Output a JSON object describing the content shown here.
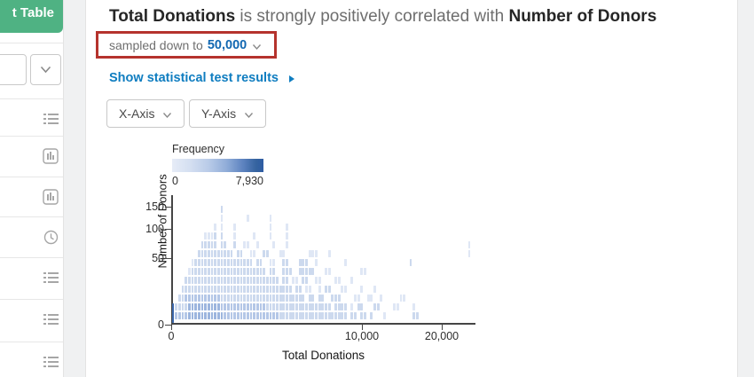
{
  "colors": {
    "accent_green": "#4fb283",
    "link_blue": "#0f7dc0",
    "value_blue": "#1268b2",
    "annotation_red": "#b5332d",
    "heat_scale": [
      "#dfe7f5",
      "#ccd9ee",
      "#b4c7e7",
      "#9cb5de",
      "#3a66ab"
    ],
    "legend_gradient_min": "#e6ecf7",
    "legend_gradient_max": "#2e5ca3"
  },
  "sidebar": {
    "pivot_button_label": "t Table",
    "rows": [
      {
        "icon": "list"
      },
      {
        "icon": "bar-chart"
      },
      {
        "icon": "bar-chart"
      },
      {
        "icon": "clock"
      },
      {
        "icon": "list"
      },
      {
        "icon": "list"
      },
      {
        "icon": "list"
      }
    ]
  },
  "header": {
    "title_subject": "Total Donations",
    "title_middle": " is strongly positively correlated with ",
    "title_object": "Number of Donors",
    "sample_prefix": "sampled down to",
    "sample_value": "50,000",
    "stats_link": "Show statistical test results"
  },
  "controls": {
    "x_axis_button": "X-Axis",
    "y_axis_button": "Y-Axis"
  },
  "chart_data": {
    "type": "heatmap",
    "title": "",
    "xlabel": "Total Donations",
    "ylabel": "Number of Donors",
    "x_scale": "sqrt",
    "y_scale": "sqrt",
    "x_range": [
      0,
      24000
    ],
    "y_range": [
      0,
      165
    ],
    "x_ticks": [
      "0",
      "10,000",
      "20,000"
    ],
    "x_tick_values": [
      0,
      10000,
      20000
    ],
    "y_ticks": [
      "0",
      "50",
      "100",
      "150"
    ],
    "y_tick_values": [
      0,
      50,
      100,
      150
    ],
    "legend": {
      "label": "Frequency",
      "min_label": "0",
      "max_label": "7,930",
      "min": 0,
      "max": 7930
    },
    "grid": {
      "cols": 94,
      "rows": 13,
      "col_bin_donations": 255,
      "row_bin_donors": 12
    },
    "cells_runs": [
      {
        "r": 0,
        "runs": [
          [
            0,
            0,
            5
          ],
          [
            1,
            4,
            3
          ],
          [
            5,
            15,
            4
          ],
          [
            16,
            32,
            3
          ],
          [
            33,
            53,
            2
          ],
          [
            55,
            56,
            2
          ],
          [
            58,
            59,
            2
          ],
          [
            61,
            61,
            2
          ],
          [
            65,
            65,
            1
          ],
          [
            74,
            75,
            2
          ]
        ]
      },
      {
        "r": 1,
        "runs": [
          [
            0,
            0,
            5
          ],
          [
            1,
            4,
            2
          ],
          [
            5,
            14,
            4
          ],
          [
            15,
            28,
            3
          ],
          [
            29,
            48,
            2
          ],
          [
            50,
            53,
            2
          ],
          [
            55,
            55,
            1
          ],
          [
            57,
            58,
            2
          ],
          [
            62,
            63,
            2
          ],
          [
            68,
            69,
            1
          ],
          [
            74,
            74,
            1
          ]
        ]
      },
      {
        "r": 2,
        "runs": [
          [
            2,
            3,
            2
          ],
          [
            4,
            14,
            3
          ],
          [
            15,
            40,
            2
          ],
          [
            42,
            43,
            2
          ],
          [
            45,
            46,
            2
          ],
          [
            49,
            51,
            2
          ],
          [
            56,
            57,
            1
          ],
          [
            60,
            61,
            1
          ],
          [
            64,
            64,
            1
          ],
          [
            70,
            71,
            1
          ]
        ]
      },
      {
        "r": 3,
        "runs": [
          [
            3,
            36,
            2
          ],
          [
            38,
            39,
            2
          ],
          [
            41,
            42,
            1
          ],
          [
            45,
            45,
            1
          ],
          [
            47,
            48,
            2
          ],
          [
            52,
            53,
            1
          ],
          [
            58,
            58,
            1
          ],
          [
            62,
            62,
            1
          ]
        ]
      },
      {
        "r": 4,
        "runs": [
          [
            4,
            32,
            2
          ],
          [
            34,
            35,
            2
          ],
          [
            37,
            38,
            1
          ],
          [
            40,
            41,
            2
          ],
          [
            44,
            45,
            1
          ],
          [
            50,
            51,
            1
          ],
          [
            55,
            55,
            1
          ]
        ]
      },
      {
        "r": 5,
        "runs": [
          [
            5,
            5,
            1
          ],
          [
            6,
            28,
            2
          ],
          [
            30,
            31,
            2
          ],
          [
            34,
            36,
            2
          ],
          [
            39,
            43,
            2
          ],
          [
            47,
            48,
            1
          ],
          [
            58,
            59,
            1
          ]
        ]
      },
      {
        "r": 6,
        "runs": [
          [
            6,
            6,
            1
          ],
          [
            7,
            24,
            2
          ],
          [
            26,
            27,
            2
          ],
          [
            30,
            31,
            1
          ],
          [
            34,
            35,
            2
          ],
          [
            39,
            41,
            2
          ],
          [
            44,
            44,
            1
          ],
          [
            53,
            53,
            1
          ],
          [
            73,
            73,
            2
          ]
        ]
      },
      {
        "r": 7,
        "runs": [
          [
            8,
            18,
            2
          ],
          [
            20,
            21,
            2
          ],
          [
            24,
            25,
            1
          ],
          [
            28,
            29,
            2
          ],
          [
            33,
            34,
            1
          ],
          [
            42,
            44,
            1
          ],
          [
            48,
            48,
            1
          ],
          [
            91,
            91,
            1
          ]
        ]
      },
      {
        "r": 8,
        "runs": [
          [
            9,
            13,
            2
          ],
          [
            15,
            16,
            2
          ],
          [
            19,
            19,
            2
          ],
          [
            22,
            23,
            1
          ],
          [
            26,
            26,
            1
          ],
          [
            31,
            31,
            1
          ],
          [
            35,
            35,
            1
          ],
          [
            91,
            91,
            1
          ]
        ]
      },
      {
        "r": 9,
        "runs": [
          [
            10,
            12,
            1
          ],
          [
            13,
            13,
            2
          ],
          [
            15,
            15,
            2
          ],
          [
            19,
            19,
            1
          ],
          [
            25,
            25,
            1
          ],
          [
            30,
            30,
            1
          ],
          [
            35,
            35,
            1
          ]
        ]
      },
      {
        "r": 10,
        "runs": [
          [
            13,
            13,
            1
          ],
          [
            15,
            15,
            1
          ],
          [
            19,
            19,
            1
          ],
          [
            30,
            30,
            1
          ],
          [
            35,
            35,
            1
          ]
        ]
      },
      {
        "r": 11,
        "runs": [
          [
            15,
            15,
            1
          ],
          [
            23,
            23,
            1
          ],
          [
            30,
            30,
            1
          ]
        ]
      },
      {
        "r": 12,
        "runs": [
          [
            15,
            15,
            2
          ]
        ]
      }
    ]
  }
}
